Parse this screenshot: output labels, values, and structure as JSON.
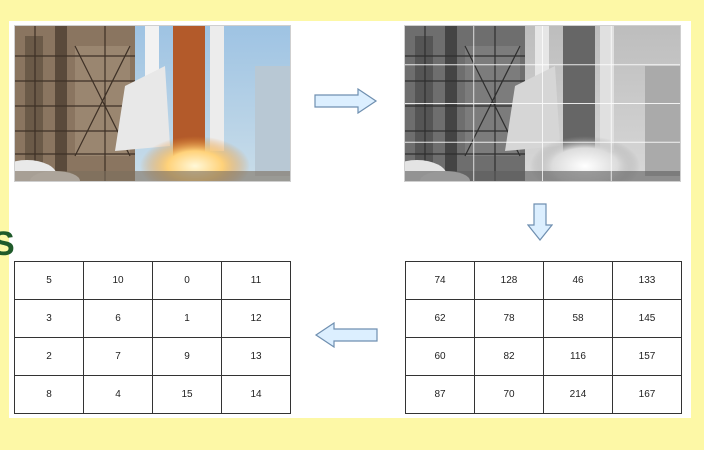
{
  "slide": {
    "partial_text": "S",
    "colors": {
      "background": "#fdf8a6",
      "panel": "#ffffff",
      "arrow_fill": "#dcefff",
      "arrow_stroke": "#6f8fb0",
      "partial_text": "#1f5a2a"
    }
  },
  "images": {
    "color_photo_icon": "rocket-launch-photo",
    "gray_photo_icon": "rocket-launch-grayscale-photo",
    "gray_grid": {
      "rows": 4,
      "cols": 4
    }
  },
  "arrows": [
    "arrow-right-icon",
    "arrow-down-icon",
    "arrow-left-icon"
  ],
  "intensity_table": {
    "rows": [
      [
        "74",
        "128",
        "46",
        "133"
      ],
      [
        "62",
        "78",
        "58",
        "145"
      ],
      [
        "60",
        "82",
        "116",
        "157"
      ],
      [
        "87",
        "70",
        "214",
        "167"
      ]
    ]
  },
  "index_table": {
    "rows": [
      [
        "5",
        "10",
        "0",
        "11"
      ],
      [
        "3",
        "6",
        "1",
        "12"
      ],
      [
        "2",
        "7",
        "9",
        "13"
      ],
      [
        "8",
        "4",
        "15",
        "14"
      ]
    ]
  }
}
